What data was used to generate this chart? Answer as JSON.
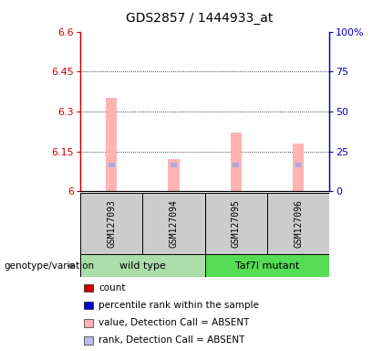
{
  "title": "GDS2857 / 1444933_at",
  "samples": [
    "GSM127093",
    "GSM127094",
    "GSM127095",
    "GSM127096"
  ],
  "group_labels": [
    "wild type",
    "Taf7l mutant"
  ],
  "bar_values": [
    6.35,
    6.12,
    6.22,
    6.18
  ],
  "pink_bar_color": "#ffb3b3",
  "blue_marker_color": "#aaaadd",
  "blue_rank_value": 6.09,
  "ylim": [
    6.0,
    6.6
  ],
  "yticks": [
    6.0,
    6.15,
    6.3,
    6.45,
    6.6
  ],
  "ytick_labels": [
    "6",
    "6.15",
    "6.3",
    "6.45",
    "6.6"
  ],
  "right_yticks": [
    0,
    25,
    50,
    75,
    100
  ],
  "right_ytick_labels": [
    "0",
    "25",
    "50",
    "75",
    "100%"
  ],
  "left_axis_color": "#cc0000",
  "right_axis_color": "#0000cc",
  "sample_box_color": "#cccccc",
  "wt_color": "#aaddaa",
  "mut_color": "#55dd55",
  "legend_colors": [
    "#cc0000",
    "#0000cc",
    "#ffb3b3",
    "#bbbbee"
  ],
  "legend_labels": [
    "count",
    "percentile rank within the sample",
    "value, Detection Call = ABSENT",
    "rank, Detection Call = ABSENT"
  ],
  "bar_width": 0.18
}
